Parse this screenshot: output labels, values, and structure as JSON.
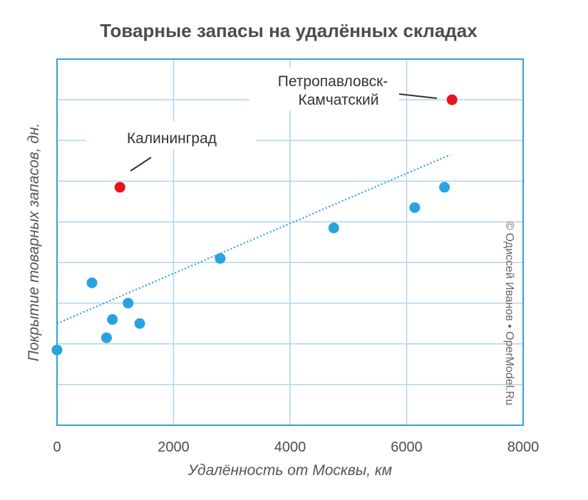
{
  "chart_data": {
    "type": "scatter",
    "title": "Товарные запасы на удалённых складах",
    "xlabel": "Удалённость от Москвы, км",
    "ylabel": "Покрытие товарных запасов, дн.",
    "xlim": [
      0,
      8000
    ],
    "x_ticks": [
      "0",
      "2000",
      "4000",
      "6000",
      "8000"
    ],
    "ylim": [
      0,
      9
    ],
    "y_tick_labels_shown": false,
    "grid": true,
    "points": [
      {
        "x": 0,
        "y": 1.85,
        "color": "#29a3e0"
      },
      {
        "x": 600,
        "y": 3.5,
        "color": "#29a3e0"
      },
      {
        "x": 850,
        "y": 2.15,
        "color": "#29a3e0"
      },
      {
        "x": 950,
        "y": 2.6,
        "color": "#29a3e0"
      },
      {
        "x": 1220,
        "y": 3.0,
        "color": "#29a3e0"
      },
      {
        "x": 1420,
        "y": 2.5,
        "color": "#29a3e0"
      },
      {
        "x": 2800,
        "y": 4.1,
        "color": "#29a3e0"
      },
      {
        "x": 4750,
        "y": 4.85,
        "color": "#29a3e0"
      },
      {
        "x": 6140,
        "y": 5.35,
        "color": "#29a3e0"
      },
      {
        "x": 6650,
        "y": 5.85,
        "color": "#29a3e0"
      },
      {
        "x": 1080,
        "y": 5.85,
        "color": "#e8141b",
        "label": "Калининград"
      },
      {
        "x": 6780,
        "y": 8.0,
        "color": "#e8141b",
        "label": "Петропавловск-Камчатский"
      }
    ],
    "trendline": {
      "x": [
        0,
        6750
      ],
      "y": [
        2.5,
        6.65
      ],
      "style": "dotted",
      "color": "#29a3e0"
    },
    "annotations": [
      {
        "lines": [
          "Калининград"
        ]
      },
      {
        "lines": [
          "Петропавловск-",
          "Камчатский"
        ]
      }
    ],
    "credit": "© Одиссей Иванов • OperModel.Ru",
    "colors": {
      "frame": "#33a3d6",
      "grid": "#b0d4ea",
      "normal_point": "#29a3e0",
      "outlier_point": "#e8141b"
    }
  }
}
